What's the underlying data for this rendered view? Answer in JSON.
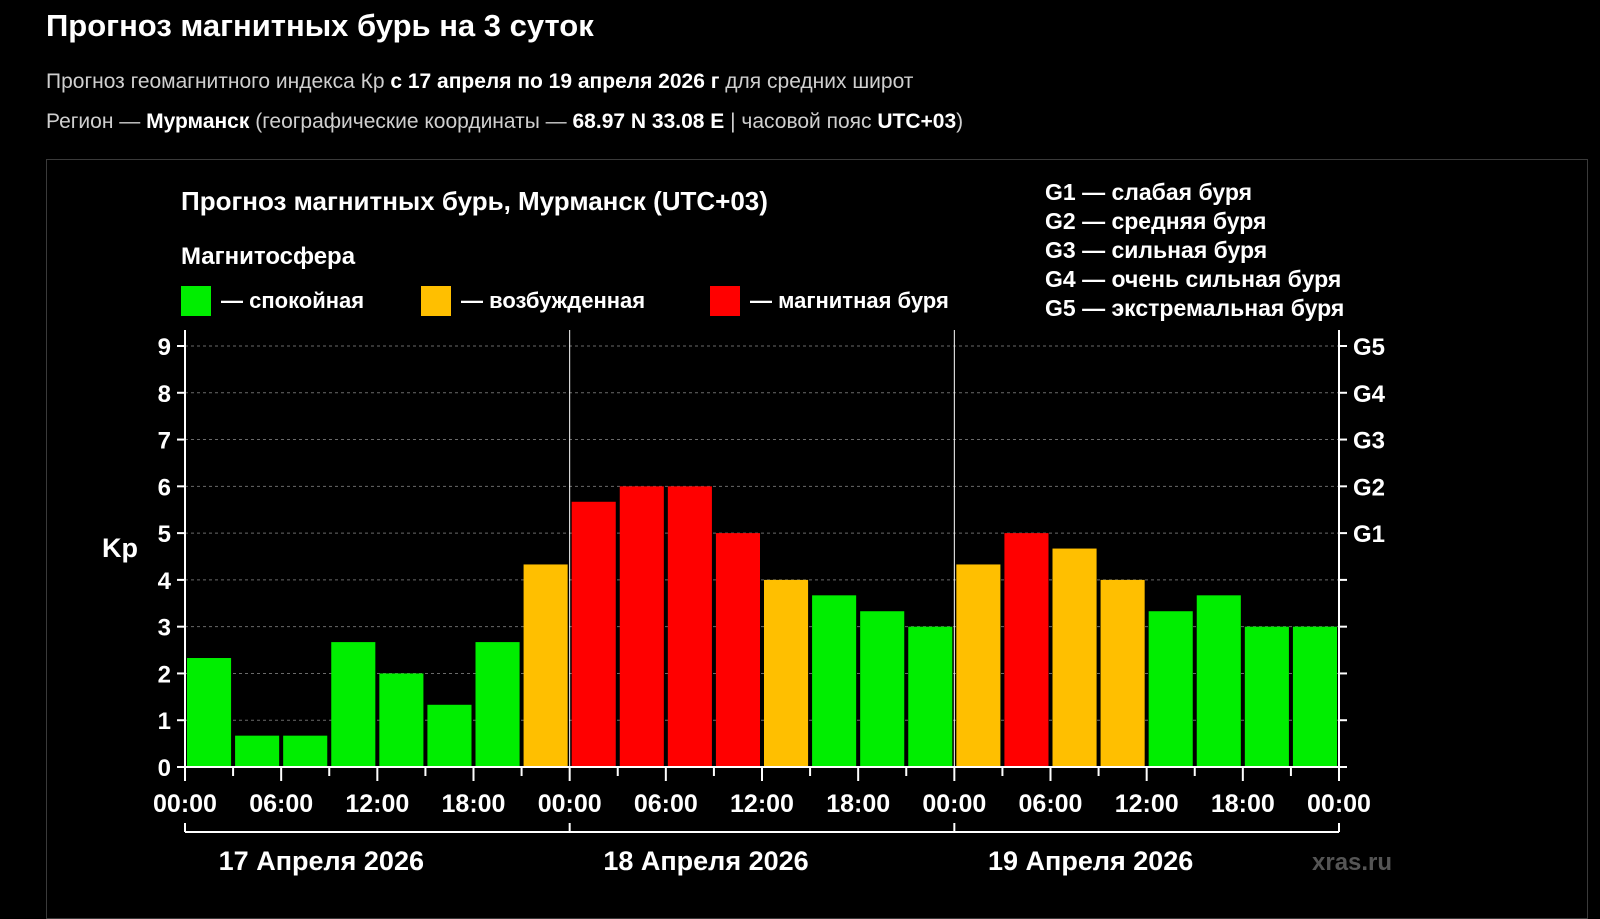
{
  "page": {
    "title": "Прогноз магнитных бурь на 3 суток",
    "line1": {
      "pre": "Прогноз геомагнитного индекса Кр ",
      "dates": "с 17 апреля по 19 апреля 2026 г",
      "post": " для средних широт"
    },
    "line2": {
      "pre": "Регион — ",
      "region": "Мурманск",
      "mid": " (географические координаты — ",
      "coords": "68.97 N 33.08 E",
      "mid2": " | часовой пояс ",
      "tz": "UTC+03",
      "post": ")"
    }
  },
  "chart_data": {
    "type": "bar",
    "title": "Прогноз магнитных бурь, Мурманск (UTC+03)",
    "legend_title": "Магнитосфера",
    "legend": [
      {
        "label": "— спокойная",
        "color": "#00ee00"
      },
      {
        "label": "— возбужденная",
        "color": "#ffbf00"
      },
      {
        "label": "— магнитная буря",
        "color": "#ff0000"
      }
    ],
    "storm_legend": [
      "G1 — слабая буря",
      "G2 — средняя буря",
      "G3 — сильная буря",
      "G4 — очень сильная буря",
      "G5 — экстремальная буря"
    ],
    "ylabel": "Kp",
    "ylim": [
      0,
      9
    ],
    "yticks": [
      0,
      1,
      2,
      3,
      4,
      5,
      6,
      7,
      8,
      9
    ],
    "right_ticks": [
      {
        "value": 5,
        "label": "G1"
      },
      {
        "value": 6,
        "label": "G2"
      },
      {
        "value": 7,
        "label": "G3"
      },
      {
        "value": 8,
        "label": "G4"
      },
      {
        "value": 9,
        "label": "G5"
      }
    ],
    "grid": "dotted horizontal",
    "x_tick_labels": [
      "00:00",
      "06:00",
      "12:00",
      "18:00",
      "00:00",
      "06:00",
      "12:00",
      "18:00",
      "00:00",
      "06:00",
      "12:00",
      "18:00",
      "00:00"
    ],
    "days": [
      "17 Апреля 2026",
      "18 Апреля 2026",
      "19 Апреля 2026"
    ],
    "intervals_per_day": 8,
    "values": [
      2.33,
      0.67,
      0.67,
      2.67,
      2.0,
      1.33,
      2.67,
      4.33,
      5.67,
      6.0,
      6.0,
      5.0,
      4.0,
      3.67,
      3.33,
      3.0,
      4.33,
      5.0,
      4.67,
      4.0,
      3.33,
      3.67,
      3.0,
      3.0
    ],
    "colors": {
      "quiet": "#00ee00",
      "active": "#ffbf00",
      "storm": "#ff0000"
    },
    "watermark": "xras.ru"
  }
}
